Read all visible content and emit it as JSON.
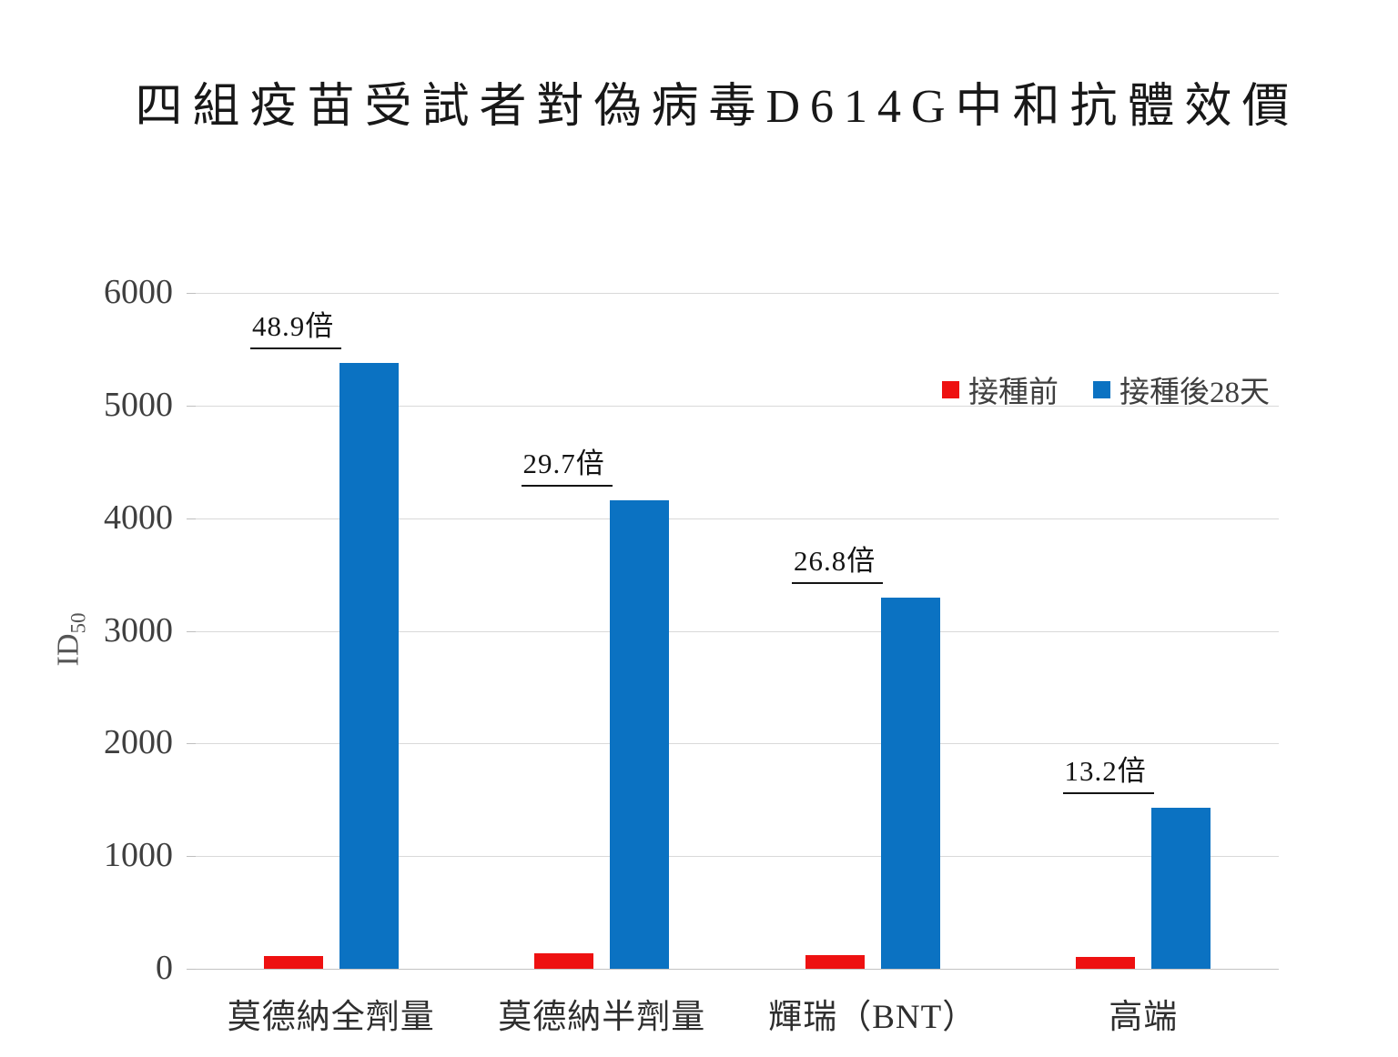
{
  "title": "四組疫苗受試者對偽病毒D614G中和抗體效價",
  "colors": {
    "pre_bar": "#ee1111",
    "post_bar": "#0b72c2",
    "gridline": "#d9d9d9",
    "baseline": "#c3c3c3",
    "tick": "#bfbfbf",
    "title_text": "#181818",
    "axis_text": "#3f3f3f"
  },
  "chart_data": {
    "type": "bar",
    "title": "四組疫苗受試者對偽病毒D614G中和抗體效價",
    "categories": [
      "莫德納全劑量",
      "莫德納半劑量",
      "輝瑞（BNT）",
      "高端"
    ],
    "series": [
      {
        "name": "接種前",
        "color": "#ee1111",
        "values": [
          110,
          140,
          123,
          108
        ]
      },
      {
        "name": "接種後28天",
        "color": "#0b72c2",
        "values": [
          5379,
          4158,
          3296,
          1426
        ]
      }
    ],
    "fold_labels": [
      "48.9倍",
      "29.7倍",
      "26.8倍",
      "13.2倍"
    ],
    "ylabel_base": "ID",
    "ylabel_sub": "50",
    "ylim": [
      0,
      6000
    ],
    "yticks": [
      0,
      1000,
      2000,
      3000,
      4000,
      5000,
      6000
    ],
    "grid": true,
    "legend_position": "top-right-inside"
  }
}
